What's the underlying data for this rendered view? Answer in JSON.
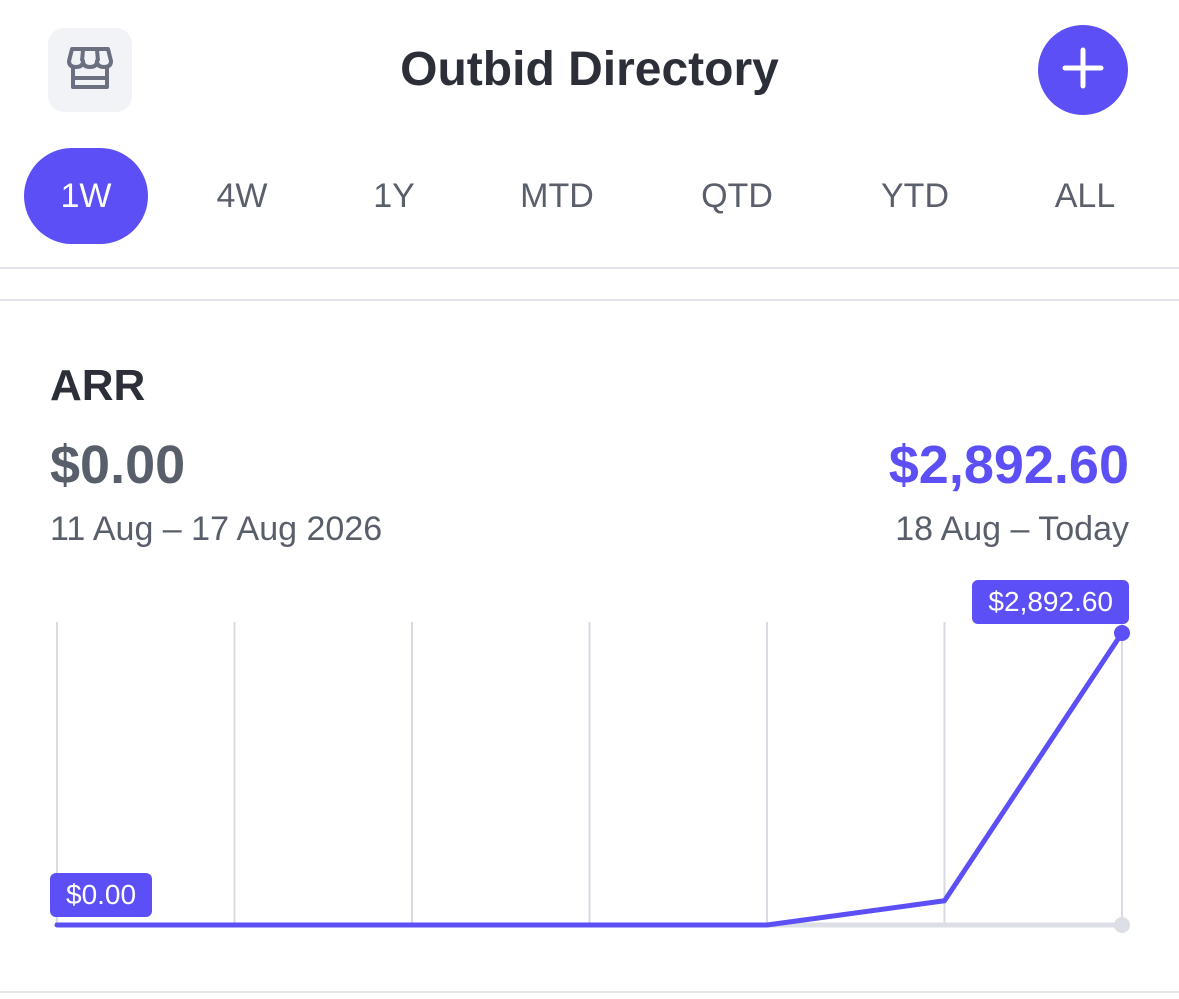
{
  "header": {
    "title": "Outbid Directory",
    "left_icon": "storefront-icon",
    "right_icon": "plus-icon"
  },
  "tabs": [
    {
      "label": "1W",
      "active": true
    },
    {
      "label": "4W",
      "active": false
    },
    {
      "label": "1Y",
      "active": false
    },
    {
      "label": "MTD",
      "active": false
    },
    {
      "label": "QTD",
      "active": false
    },
    {
      "label": "YTD",
      "active": false
    },
    {
      "label": "ALL",
      "active": false
    }
  ],
  "metric": {
    "title": "ARR",
    "previous_value": "$0.00",
    "previous_range": "11 Aug – 17 Aug 2026",
    "current_value": "$2,892.60",
    "current_range": "18 Aug – Today"
  },
  "colors": {
    "accent": "#5b4ff5",
    "gridline": "#d8dbe2",
    "baseline": "#dcdfe5"
  },
  "chart_data": {
    "type": "line",
    "x": [
      1,
      2,
      3,
      4,
      5,
      6,
      7
    ],
    "series": [
      {
        "values": [
          0,
          0,
          0,
          0,
          0,
          240,
          2892.6
        ]
      }
    ],
    "start_label": "$0.00",
    "end_label": "$2,892.60",
    "ylim": [
      0,
      2892.6
    ],
    "grid": "vertical"
  }
}
